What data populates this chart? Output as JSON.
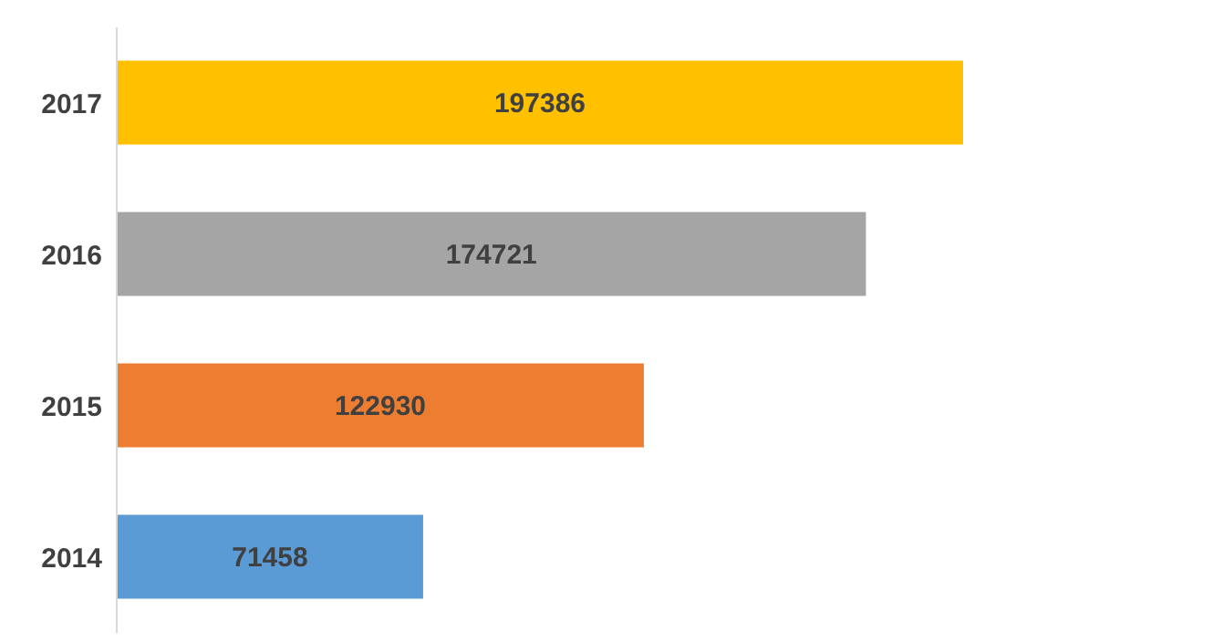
{
  "chart_data": {
    "type": "bar",
    "orientation": "horizontal",
    "categories": [
      "2017",
      "2016",
      "2015",
      "2014"
    ],
    "values": [
      197386,
      174721,
      122930,
      71458
    ],
    "colors": [
      "#ffc000",
      "#a5a5a5",
      "#ed7d31",
      "#5b9bd5"
    ],
    "data_labels": true
  }
}
